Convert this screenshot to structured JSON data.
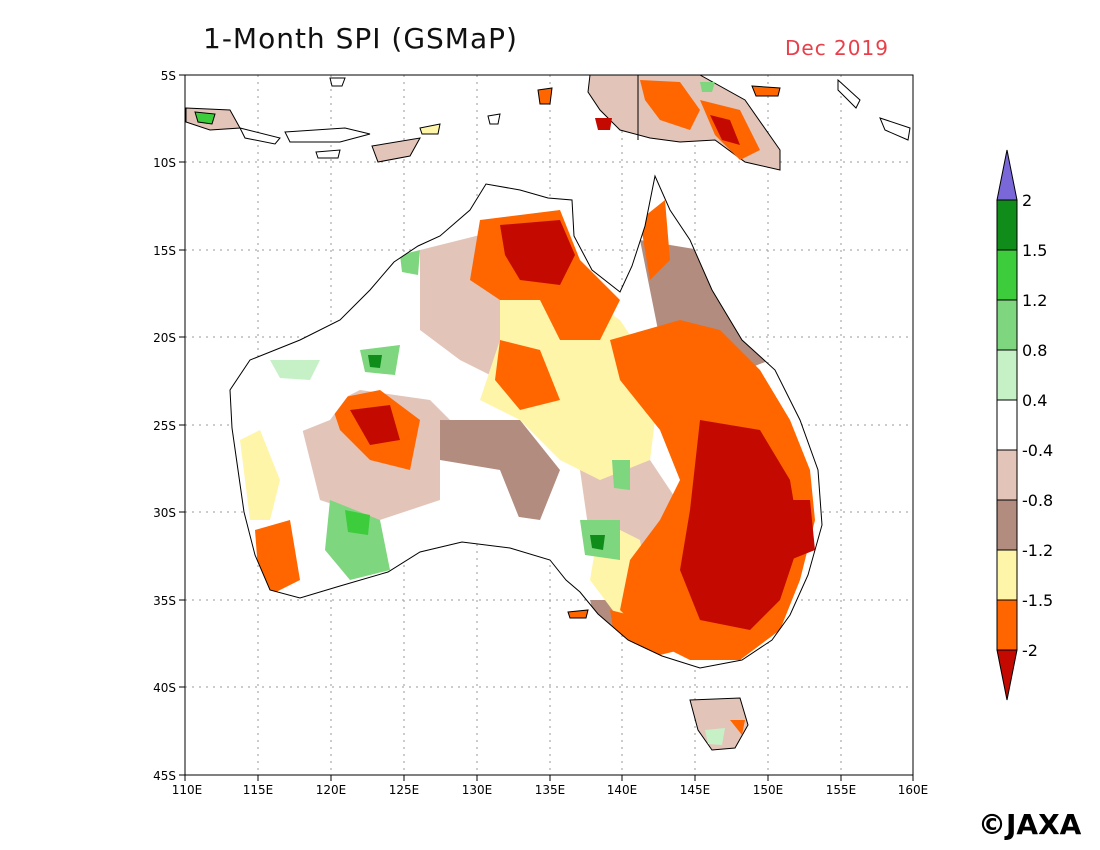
{
  "title": "1-Month SPI (GSMaP)",
  "subtitle": "Dec 2019",
  "credit": "©JAXA",
  "map": {
    "region": "Australia",
    "lon_range": [
      110,
      160
    ],
    "lat_range": [
      -45,
      -5
    ],
    "lon_ticks": [
      "110E",
      "115E",
      "120E",
      "125E",
      "130E",
      "135E",
      "140E",
      "145E",
      "150E",
      "155E",
      "160E"
    ],
    "lat_ticks": [
      "5S",
      "10S",
      "15S",
      "20S",
      "25S",
      "30S",
      "35S",
      "40S",
      "45S"
    ],
    "gridlines": true
  },
  "colorbar": {
    "labels": [
      "2",
      "1.5",
      "1.2",
      "0.8",
      "0.4",
      "-0.4",
      "-0.8",
      "-1.2",
      "-1.5",
      "-2"
    ],
    "colors": {
      "above_2": "#7b68d8",
      "1.5_to_2": "#108c1a",
      "1.2_to_1.5": "#3ccc3c",
      "0.8_to_1.2": "#7ed67e",
      "0.4_to_0.8": "#c6f0c6",
      "-0.4_to_0.4": "#ffffff",
      "-0.8_to_-0.4": "#e3c4b9",
      "-1.2_to_-0.8": "#b38c80",
      "-1.5_to_-1.2": "#fff5a8",
      "-2_to_-1.5": "#ff6600",
      "below_-2": "#c40a00"
    }
  }
}
